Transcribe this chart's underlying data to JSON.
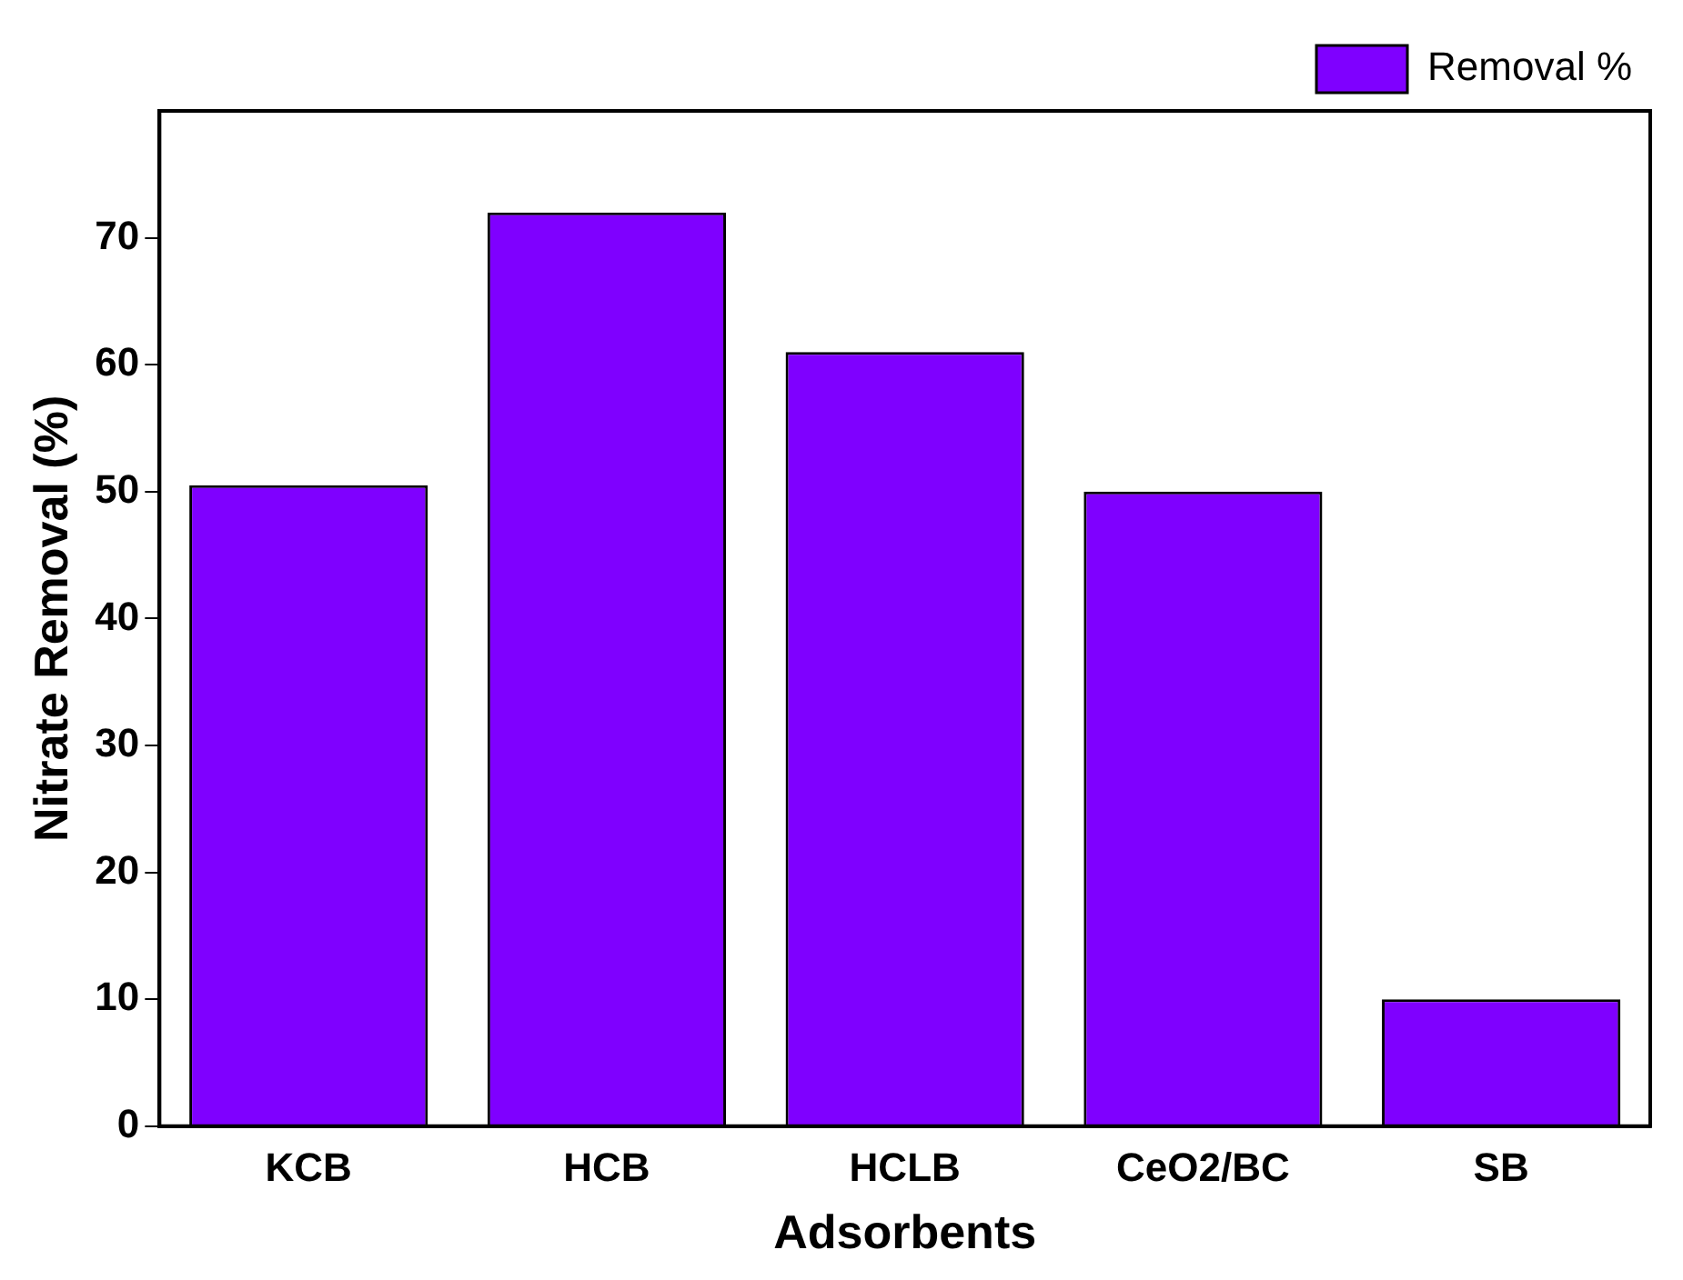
{
  "chart_data": {
    "type": "bar",
    "xlabel": "Adsorbents",
    "ylabel": "Nitrate Removal (%)",
    "categories": [
      "KCB",
      "HCB",
      "HCLB",
      "CeO2/BC",
      "SB"
    ],
    "series": [
      {
        "name": "Removal %",
        "color": "#7f00ff",
        "values": [
          50.5,
          72,
          61,
          50,
          10
        ]
      }
    ],
    "ylim": [
      0,
      80
    ],
    "yticks": [
      0,
      10,
      20,
      30,
      40,
      50,
      60,
      70
    ],
    "grid": false,
    "legend": "top right"
  }
}
